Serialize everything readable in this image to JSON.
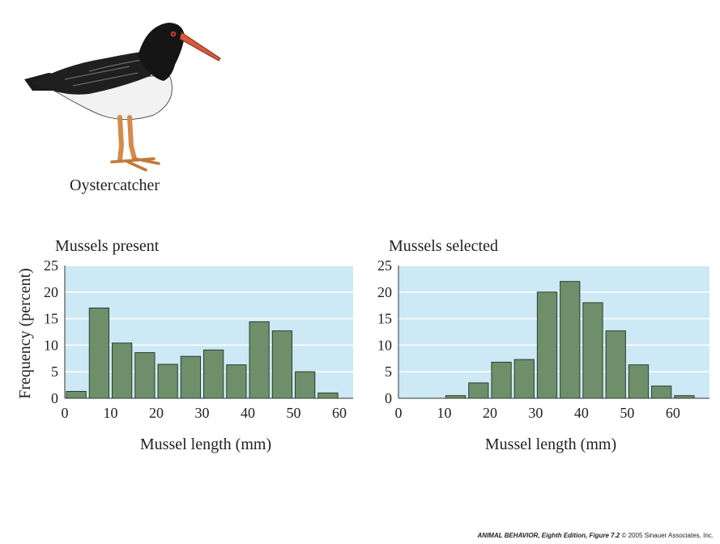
{
  "bird_label": "Oystercatcher",
  "colors": {
    "plot_bg": "#cde9f6",
    "bar_fill": "#6e8f6a",
    "bar_stroke": "#2c3d2c",
    "grid": "#ffffff"
  },
  "footer": {
    "book": "ANIMAL BEHAVIOR, Eighth Edition,",
    "figure": "Figure 7.2",
    "copyright": "© 2005 Sinauer Associates, Inc."
  },
  "chart_data": [
    {
      "type": "bar",
      "title": "Mussels present",
      "xlabel": "Mussel length (mm)",
      "ylabel": "Frequency (percent)",
      "ylim": [
        0,
        25
      ],
      "xlim": [
        0,
        63
      ],
      "yticks": [
        0,
        5,
        10,
        15,
        20,
        25
      ],
      "xticks": [
        0,
        10,
        20,
        30,
        40,
        50,
        60
      ],
      "bin_width": 5,
      "bin_starts": [
        0,
        5,
        10,
        15,
        20,
        25,
        30,
        35,
        40,
        45,
        50,
        55
      ],
      "values": [
        1.3,
        17.0,
        10.4,
        8.6,
        6.4,
        7.9,
        9.1,
        6.3,
        14.4,
        12.7,
        5.0,
        1.0
      ],
      "grid": true
    },
    {
      "type": "bar",
      "title": "Mussels selected",
      "xlabel": "Mussel length (mm)",
      "ylabel": "",
      "ylim": [
        0,
        25
      ],
      "xlim": [
        0,
        68
      ],
      "yticks": [
        0,
        5,
        10,
        15,
        20,
        25
      ],
      "xticks": [
        0,
        10,
        20,
        30,
        40,
        50,
        60
      ],
      "bin_width": 5,
      "bin_starts": [
        10,
        15,
        20,
        25,
        30,
        35,
        40,
        45,
        50,
        55,
        60
      ],
      "values": [
        0.5,
        2.9,
        6.8,
        7.3,
        20.0,
        22.0,
        18.0,
        12.7,
        6.3,
        2.3,
        0.5
      ],
      "grid": true
    }
  ]
}
